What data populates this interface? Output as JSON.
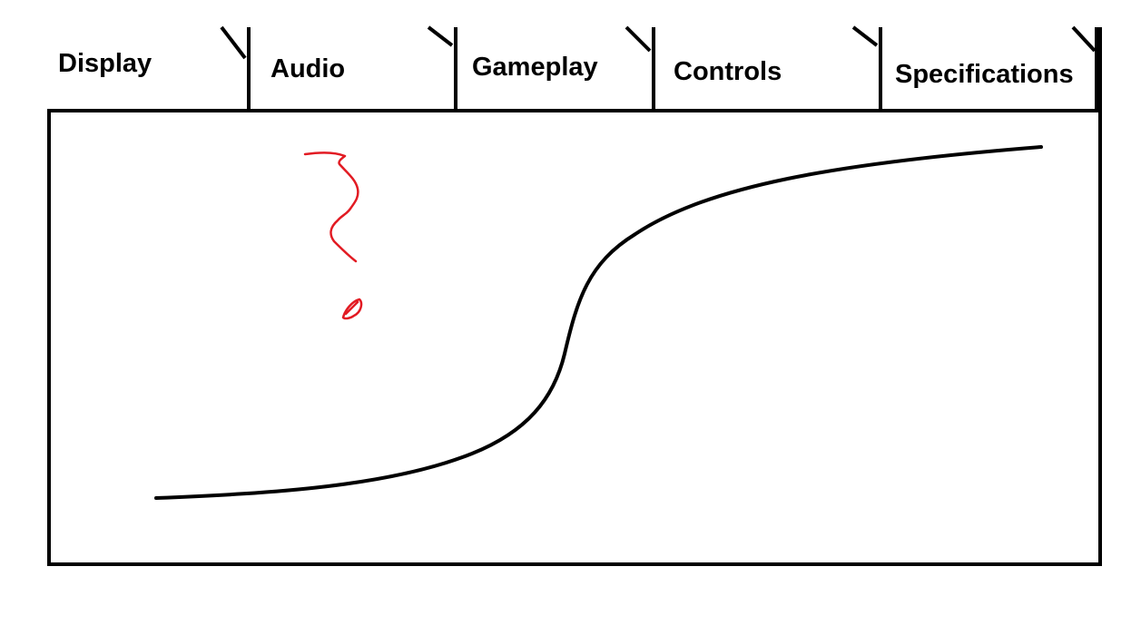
{
  "tabs": [
    {
      "label": "Display"
    },
    {
      "label": "Audio"
    },
    {
      "label": "Gameplay"
    },
    {
      "label": "Controls"
    },
    {
      "label": "Specifications"
    }
  ],
  "colors": {
    "border": "#000000",
    "curve": "#000000",
    "annotation": "#e21b23",
    "background": "#ffffff"
  },
  "annotation": {
    "icon": "question-mark-icon"
  }
}
